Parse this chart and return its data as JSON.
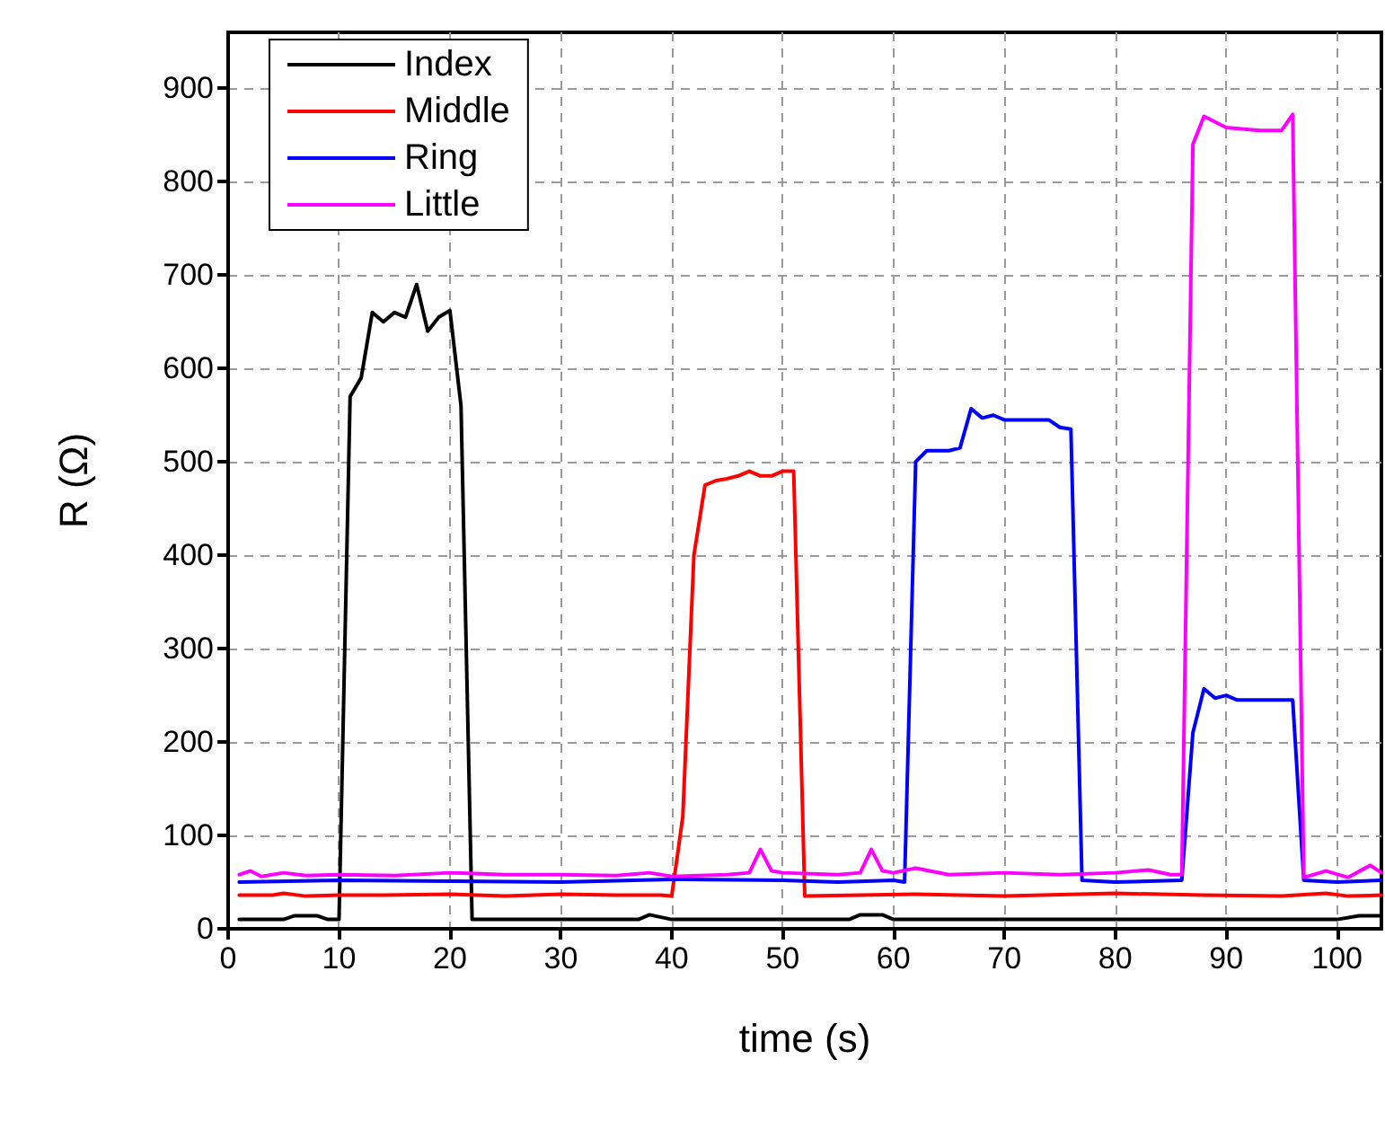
{
  "chart_data": {
    "type": "line",
    "xlabel": "time (s)",
    "ylabel": "R (Ω)",
    "xlim": [
      0,
      104
    ],
    "xticks": [
      0,
      10,
      20,
      30,
      40,
      50,
      60,
      70,
      80,
      90,
      100
    ],
    "ylim": [
      0,
      960
    ],
    "yticks": [
      0,
      100,
      200,
      300,
      400,
      500,
      600,
      700,
      800,
      900
    ],
    "grid": true,
    "legend": "top left",
    "marker": "none",
    "line_style": "solid",
    "series": [
      {
        "name": "Index",
        "color": "#000000",
        "x": [
          1,
          5,
          6,
          8,
          9,
          10,
          11,
          12,
          13,
          14,
          15,
          16,
          17,
          18,
          19,
          20,
          21,
          22,
          30,
          37,
          38,
          40,
          56,
          57,
          59,
          60,
          100,
          102,
          104
        ],
        "values": [
          10,
          10,
          14,
          14,
          10,
          10,
          570,
          590,
          660,
          650,
          660,
          655,
          690,
          640,
          655,
          662,
          560,
          10,
          10,
          10,
          15,
          10,
          10,
          15,
          15,
          10,
          10,
          14,
          14
        ]
      },
      {
        "name": "Middle",
        "color": "#ff0000",
        "x": [
          1,
          4,
          5,
          7,
          10,
          14,
          20,
          25,
          30,
          35,
          39,
          40,
          41,
          42,
          43,
          44,
          45,
          46,
          47,
          48,
          49,
          50,
          51,
          52,
          57,
          62,
          70,
          80,
          88,
          95,
          99,
          101,
          104
        ],
        "values": [
          36,
          36,
          38,
          35,
          36,
          36,
          37,
          35,
          37,
          36,
          36,
          35,
          120,
          400,
          475,
          480,
          482,
          485,
          490,
          485,
          485,
          490,
          490,
          35,
          36,
          37,
          35,
          38,
          36,
          35,
          38,
          35,
          36
        ]
      },
      {
        "name": "Ring",
        "color": "#0000ff",
        "x": [
          1,
          10,
          20,
          30,
          40,
          50,
          55,
          60,
          61,
          62,
          63,
          65,
          66,
          67,
          68,
          69,
          70,
          74,
          75,
          76,
          77,
          80,
          86,
          87,
          88,
          89,
          90,
          91,
          96,
          97,
          100,
          104
        ],
        "values": [
          50,
          52,
          51,
          50,
          53,
          52,
          50,
          52,
          50,
          500,
          512,
          512,
          515,
          557,
          547,
          550,
          545,
          545,
          537,
          535,
          52,
          50,
          52,
          210,
          257,
          247,
          250,
          245,
          245,
          52,
          50,
          52
        ]
      },
      {
        "name": "Little",
        "color": "#ff00ff",
        "x": [
          1,
          2,
          3,
          5,
          7,
          10,
          15,
          20,
          25,
          30,
          35,
          38,
          40,
          45,
          47,
          48,
          49,
          50,
          55,
          57,
          58,
          59,
          60,
          62,
          65,
          70,
          75,
          80,
          83,
          85,
          86,
          87,
          88,
          90,
          93,
          95,
          96,
          97,
          99,
          101,
          103,
          104
        ],
        "values": [
          58,
          62,
          56,
          60,
          57,
          58,
          57,
          60,
          58,
          58,
          57,
          60,
          56,
          58,
          60,
          85,
          62,
          60,
          58,
          60,
          85,
          62,
          60,
          65,
          58,
          60,
          58,
          60,
          63,
          58,
          58,
          840,
          870,
          858,
          855,
          855,
          872,
          55,
          62,
          55,
          68,
          60
        ]
      }
    ]
  }
}
